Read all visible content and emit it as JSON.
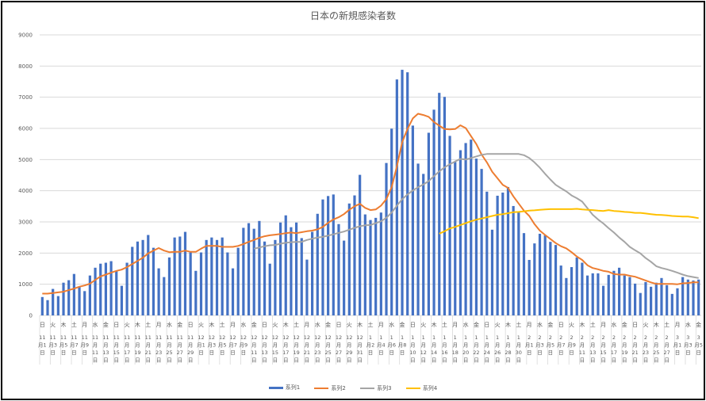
{
  "chart_data": {
    "type": "bar+line",
    "title": "日本の新規感染者数",
    "ylim": [
      0,
      9000
    ],
    "yticks": [
      "0",
      "1000",
      "2000",
      "3000",
      "4000",
      "5000",
      "6000",
      "7000",
      "8000",
      "9000"
    ],
    "grid": true,
    "legend_position": "bottom",
    "categories": [
      "11月1日",
      "11月2日",
      "11月3日",
      "11月4日",
      "11月5日",
      "11月6日",
      "11月7日",
      "11月8日",
      "11月9日",
      "11月10日",
      "11月11日",
      "11月12日",
      "11月13日",
      "11月14日",
      "11月15日",
      "11月16日",
      "11月17日",
      "11月18日",
      "11月19日",
      "11月20日",
      "11月21日",
      "11月22日",
      "11月23日",
      "11月24日",
      "11月25日",
      "11月26日",
      "11月27日",
      "11月28日",
      "11月29日",
      "11月30日",
      "12月1日",
      "12月2日",
      "12月3日",
      "12月4日",
      "12月5日",
      "12月6日",
      "12月7日",
      "12月8日",
      "12月9日",
      "12月10日",
      "12月11日",
      "12月12日",
      "12月13日",
      "12月14日",
      "12月15日",
      "12月16日",
      "12月17日",
      "12月18日",
      "12月19日",
      "12月20日",
      "12月21日",
      "12月22日",
      "12月23日",
      "12月24日",
      "12月25日",
      "12月26日",
      "12月27日",
      "12月28日",
      "12月29日",
      "12月30日",
      "12月31日",
      "1月1日",
      "1月2日",
      "1月3日",
      "1月4日",
      "1月5日",
      "1月6日",
      "1月7日",
      "1月8日",
      "1月9日",
      "1月10日",
      "1月11日",
      "1月12日",
      "1月13日",
      "1月14日",
      "1月15日",
      "1月16日",
      "1月17日",
      "1月18日",
      "1月19日",
      "1月20日",
      "1月21日",
      "1月22日",
      "1月23日",
      "1月24日",
      "1月25日",
      "1月26日",
      "1月27日",
      "1月28日",
      "1月29日",
      "1月30日",
      "1月31日",
      "2月1日",
      "2月2日",
      "2月3日",
      "2月4日",
      "2月5日",
      "2月6日",
      "2月7日",
      "2月8日",
      "2月9日",
      "2月10日",
      "2月11日",
      "2月12日",
      "2月13日",
      "2月14日",
      "2月15日",
      "2月16日",
      "2月17日",
      "2月18日",
      "2月19日",
      "2月20日",
      "2月21日",
      "2月22日",
      "2月23日",
      "2月24日",
      "2月25日",
      "2月26日",
      "2月27日",
      "2月28日",
      "3月1日",
      "3月2日",
      "3月3日",
      "3月4日",
      "3月5日"
    ],
    "weekdays_cycle": [
      "日",
      "月",
      "火",
      "水",
      "木",
      "金",
      "土"
    ],
    "series": [
      {
        "name": "系列1",
        "type": "bar",
        "color": "#4472C4",
        "values": [
          590,
          490,
          850,
          620,
          1050,
          1130,
          1330,
          930,
          780,
          1280,
          1530,
          1660,
          1690,
          1740,
          1430,
          950,
          1690,
          2200,
          2370,
          2420,
          2580,
          2170,
          1510,
          1230,
          1860,
          2500,
          2530,
          2680,
          2020,
          1430,
          2020,
          2420,
          2500,
          2420,
          2500,
          2020,
          1510,
          2170,
          2810,
          2960,
          2780,
          3030,
          2370,
          1660,
          2420,
          2980,
          3210,
          2830,
          2980,
          2480,
          1790,
          2680,
          3260,
          3720,
          3830,
          3880,
          2930,
          2400,
          3590,
          3850,
          4510,
          3240,
          3060,
          3130,
          3300,
          4890,
          5990,
          7570,
          7880,
          7800,
          6090,
          4870,
          4540,
          5860,
          6600,
          7140,
          7010,
          5760,
          4920,
          5300,
          5530,
          5640,
          5030,
          4700,
          3970,
          2750,
          3840,
          3940,
          4120,
          3510,
          3310,
          2640,
          1780,
          2310,
          2620,
          2570,
          2360,
          2260,
          1600,
          1200,
          1550,
          1860,
          1690,
          1280,
          1350,
          1350,
          950,
          1300,
          1430,
          1530,
          1280,
          1230,
          1020,
          720,
          1070,
          920,
          1050,
          1200,
          970,
          690,
          870,
          1230,
          1150,
          1120,
          1150
        ]
      },
      {
        "name": "系列2",
        "type": "line",
        "color": "#ED7D31",
        "values": [
          700,
          700,
          720,
          740,
          760,
          810,
          860,
          920,
          960,
          1020,
          1140,
          1250,
          1310,
          1370,
          1430,
          1470,
          1550,
          1650,
          1750,
          1850,
          1990,
          2080,
          2160,
          2080,
          2030,
          2040,
          2040,
          2080,
          2040,
          2040,
          2140,
          2230,
          2230,
          2230,
          2200,
          2200,
          2200,
          2230,
          2290,
          2360,
          2420,
          2490,
          2540,
          2570,
          2590,
          2610,
          2640,
          2660,
          2640,
          2670,
          2700,
          2720,
          2760,
          2840,
          2970,
          3080,
          3150,
          3250,
          3390,
          3500,
          3580,
          3450,
          3380,
          3400,
          3520,
          3730,
          4110,
          4790,
          5560,
          5980,
          6320,
          6470,
          6430,
          6370,
          6200,
          6090,
          5980,
          5970,
          5980,
          6100,
          6010,
          5750,
          5500,
          5160,
          4910,
          4610,
          4400,
          4190,
          4090,
          3820,
          3590,
          3360,
          3190,
          2930,
          2720,
          2580,
          2450,
          2320,
          2220,
          2150,
          2030,
          1890,
          1780,
          1610,
          1520,
          1480,
          1430,
          1400,
          1330,
          1310,
          1310,
          1270,
          1240,
          1180,
          1120,
          1060,
          1010,
          1010,
          1010,
          1010,
          1000,
          1030,
          1040,
          1060,
          1060
        ]
      },
      {
        "name": "系列3",
        "type": "line",
        "color": "#A5A5A5",
        "values": [
          null,
          null,
          null,
          null,
          null,
          null,
          null,
          null,
          null,
          null,
          null,
          null,
          null,
          null,
          null,
          null,
          null,
          null,
          null,
          null,
          null,
          null,
          null,
          null,
          null,
          null,
          null,
          null,
          null,
          null,
          null,
          null,
          null,
          null,
          null,
          null,
          null,
          null,
          null,
          null,
          2140,
          2180,
          2220,
          2250,
          2260,
          2300,
          2330,
          2350,
          2360,
          2360,
          2420,
          2460,
          2500,
          2520,
          2560,
          2600,
          2650,
          2690,
          2750,
          2810,
          2860,
          2890,
          2900,
          2960,
          3020,
          3130,
          3300,
          3520,
          3730,
          3880,
          4010,
          4110,
          4200,
          4310,
          4470,
          4620,
          4750,
          4850,
          4940,
          5020,
          5000,
          5050,
          5100,
          5150,
          5180,
          5180,
          5180,
          5180,
          5180,
          5180,
          5180,
          5140,
          5050,
          4910,
          4740,
          4540,
          4360,
          4190,
          4080,
          3980,
          3850,
          3760,
          3650,
          3440,
          3230,
          3080,
          2950,
          2800,
          2660,
          2500,
          2360,
          2200,
          2090,
          1990,
          1840,
          1720,
          1580,
          1520,
          1480,
          1430,
          1370,
          1310,
          1260,
          1230,
          1200
        ]
      },
      {
        "name": "系列4",
        "type": "line",
        "color": "#FFC000",
        "values": [
          null,
          null,
          null,
          null,
          null,
          null,
          null,
          null,
          null,
          null,
          null,
          null,
          null,
          null,
          null,
          null,
          null,
          null,
          null,
          null,
          null,
          null,
          null,
          null,
          null,
          null,
          null,
          null,
          null,
          null,
          null,
          null,
          null,
          null,
          null,
          null,
          null,
          null,
          null,
          null,
          null,
          null,
          null,
          null,
          null,
          null,
          null,
          null,
          null,
          null,
          null,
          null,
          null,
          null,
          null,
          null,
          null,
          null,
          null,
          null,
          null,
          null,
          null,
          null,
          null,
          null,
          null,
          null,
          null,
          null,
          null,
          null,
          null,
          null,
          null,
          2620,
          2700,
          2790,
          2840,
          2900,
          2960,
          3020,
          3070,
          3110,
          3150,
          3190,
          3230,
          3250,
          3280,
          3310,
          3320,
          3340,
          3360,
          3370,
          3390,
          3400,
          3410,
          3410,
          3410,
          3410,
          3410,
          3420,
          3400,
          3390,
          3380,
          3360,
          3350,
          3380,
          3350,
          3340,
          3320,
          3310,
          3290,
          3290,
          3270,
          3250,
          3230,
          3220,
          3210,
          3190,
          3180,
          3170,
          3170,
          3150,
          3120
        ]
      }
    ]
  }
}
